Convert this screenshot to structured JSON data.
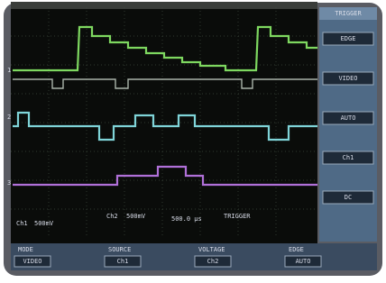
{
  "markers": [
    "1",
    "2",
    "3"
  ],
  "side_menu": {
    "title": "TRIGGER",
    "items": [
      "EDGE",
      "VIDEO",
      "AUTO",
      "Ch1",
      "DC"
    ]
  },
  "readout": {
    "ch1": "Ch1",
    "ch1_scale": "500mV",
    "ch2": "Ch2",
    "ch2_scale": "500mV",
    "timebase": "500.0 µs",
    "trigger": "TRIGGER"
  },
  "bottom_menu": {
    "labels": [
      "MODE",
      "SOURCE",
      "VOLTAGE",
      "EDGE"
    ],
    "values": [
      "VIDEO",
      "Ch1",
      "Ch2",
      "AUTO"
    ]
  }
}
